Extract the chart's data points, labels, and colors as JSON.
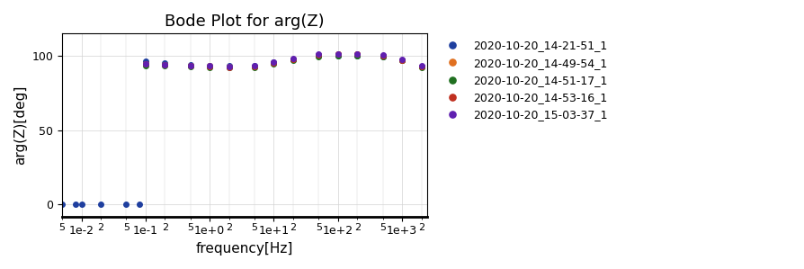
{
  "title": "Bode Plot for arg(Z)",
  "xlabel": "frequency[Hz]",
  "ylabel": "arg(Z)[deg]",
  "xlim": [
    0.005,
    2500
  ],
  "ylim": [
    -8,
    115
  ],
  "yticks": [
    0,
    50,
    100
  ],
  "grid": true,
  "series": [
    {
      "label": "2020-10-20_14-21-51_1",
      "color": "#1f3f9f",
      "marker": "o",
      "freqs": [
        0.005,
        0.008,
        0.01,
        0.02,
        0.05,
        0.08,
        0.1,
        0.2,
        0.5,
        1.0,
        2.0,
        5.0,
        10.0,
        20.0,
        50.0,
        100.0,
        200.0,
        500.0,
        1000.0,
        2000.0
      ],
      "args": [
        0.3,
        0.3,
        0.3,
        0.3,
        0.3,
        0.3,
        96.5,
        95.5,
        94.0,
        93.5,
        93.2,
        93.5,
        96.0,
        97.8,
        100.0,
        100.3,
        100.2,
        99.2,
        97.0,
        93.0
      ]
    },
    {
      "label": "2020-10-20_14-49-54_1",
      "color": "#e07020",
      "marker": "o",
      "freqs": [
        0.1,
        0.2,
        0.5,
        1.0,
        2.0,
        5.0,
        10.0,
        20.0,
        50.0,
        100.0,
        200.0,
        500.0,
        1000.0,
        2000.0
      ],
      "args": [
        94.5,
        94.0,
        93.5,
        93.2,
        92.8,
        93.0,
        95.5,
        97.5,
        100.5,
        101.0,
        101.0,
        100.0,
        97.3,
        93.0
      ]
    },
    {
      "label": "2020-10-20_14-51-17_1",
      "color": "#207020",
      "marker": "o",
      "freqs": [
        0.1,
        0.2,
        0.5,
        1.0,
        2.0,
        5.0,
        10.0,
        20.0,
        50.0,
        100.0,
        200.0,
        500.0,
        1000.0,
        2000.0
      ],
      "args": [
        93.5,
        93.2,
        92.8,
        92.5,
        92.2,
        92.5,
        94.8,
        96.8,
        99.5,
        100.3,
        100.2,
        99.2,
        96.8,
        92.5
      ]
    },
    {
      "label": "2020-10-20_14-53-16_1",
      "color": "#c03020",
      "marker": "o",
      "freqs": [
        0.1,
        0.2,
        0.5,
        1.0,
        2.0,
        5.0,
        10.0,
        20.0,
        50.0,
        100.0,
        200.0,
        500.0,
        1000.0,
        2000.0
      ],
      "args": [
        94.5,
        94.0,
        93.5,
        93.0,
        92.5,
        93.0,
        95.5,
        97.5,
        100.5,
        101.0,
        101.0,
        100.0,
        97.3,
        93.0
      ]
    },
    {
      "label": "2020-10-20_15-03-37_1",
      "color": "#6020b0",
      "marker": "o",
      "freqs": [
        0.1,
        0.2,
        0.5,
        1.0,
        2.0,
        5.0,
        10.0,
        20.0,
        50.0,
        100.0,
        200.0,
        500.0,
        1000.0,
        2000.0
      ],
      "args": [
        94.5,
        94.0,
        93.5,
        93.2,
        93.0,
        93.2,
        96.0,
        98.0,
        101.0,
        101.5,
        101.5,
        100.5,
        97.8,
        93.5
      ]
    }
  ],
  "markersize": 4,
  "legend_fontsize": 9,
  "title_fontsize": 13,
  "label_fontsize": 11
}
